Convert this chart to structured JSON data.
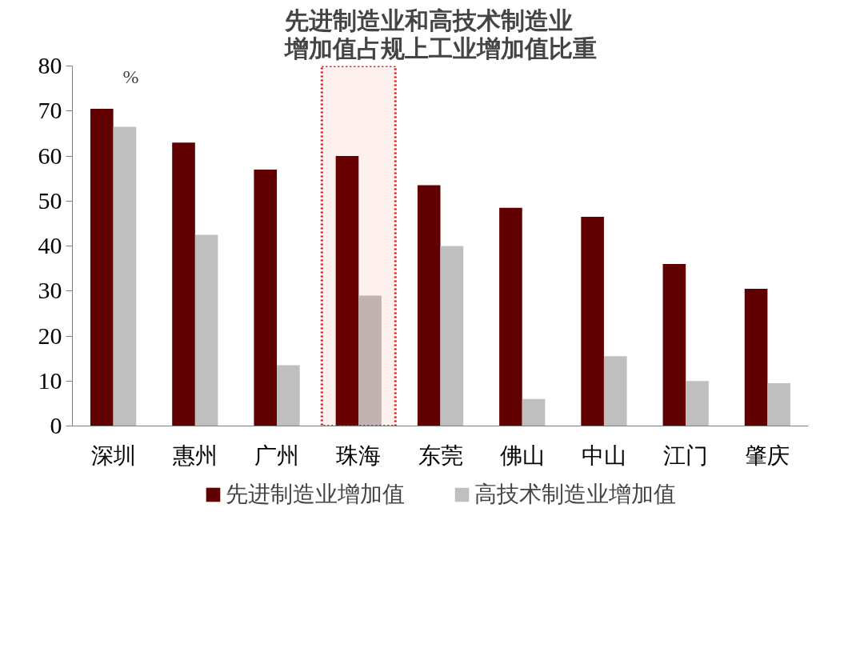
{
  "chart_data": {
    "type": "bar",
    "title": "先进制造业和高技术制造业增加值占规上工业增加值比重",
    "ylabel": "%",
    "categories": [
      "深圳",
      "惠州",
      "广州",
      "珠海",
      "东莞",
      "佛山",
      "中山",
      "江门",
      "肇庆"
    ],
    "series": [
      {
        "name": "先进制造业增加值",
        "color": "#600000",
        "values": [
          70.5,
          63,
          57,
          60,
          53.5,
          48.5,
          46.5,
          36,
          30.5
        ]
      },
      {
        "name": "高技术制造业增加值",
        "color": "#bfbfbf",
        "values": [
          66.5,
          42.5,
          13.5,
          29,
          40,
          6,
          15.5,
          10,
          9.5
        ]
      }
    ],
    "ylim": [
      0,
      80
    ],
    "yticks": [
      0,
      10,
      20,
      30,
      40,
      50,
      60,
      70,
      80
    ],
    "grid": false,
    "legend": "bottom",
    "bands": [
      {
        "axis": "x",
        "from": "珠海",
        "to": "珠海",
        "color": "#ff0000"
      }
    ]
  }
}
